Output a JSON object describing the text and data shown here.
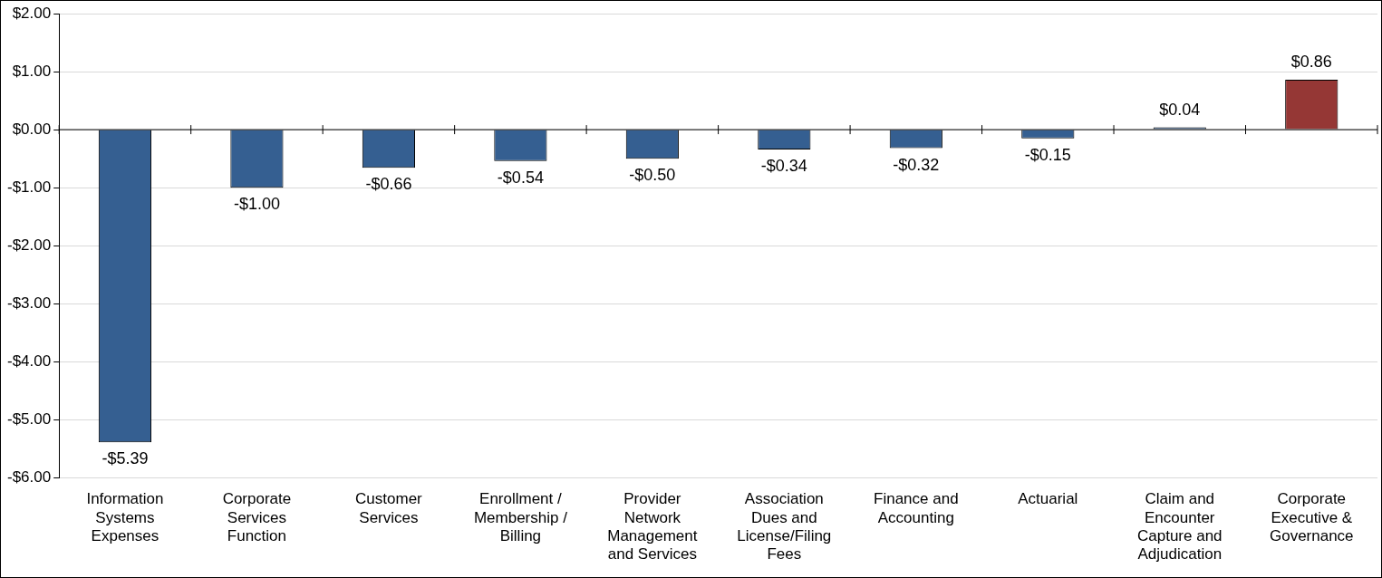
{
  "chart_data": {
    "type": "bar",
    "categories": [
      "Information Systems Expenses",
      "Corporate Services Function",
      "Customer Services",
      "Enrollment / Membership / Billing",
      "Provider Network Management and Services",
      "Association Dues and License/Filing Fees",
      "Finance and Accounting",
      "Actuarial",
      "Claim and Encounter Capture and Adjudication",
      "Corporate Executive & Governance"
    ],
    "values": [
      -5.39,
      -1.0,
      -0.66,
      -0.54,
      -0.5,
      -0.34,
      -0.32,
      -0.15,
      0.04,
      0.86
    ],
    "colors": [
      "#355f91",
      "#355f91",
      "#355f91",
      "#355f91",
      "#355f91",
      "#355f91",
      "#355f91",
      "#355f91",
      "#355f91",
      "#953735"
    ],
    "value_labels": [
      "-$5.39",
      "-$1.00",
      "-$0.66",
      "-$0.54",
      "-$0.50",
      "-$0.34",
      "-$0.32",
      "-$0.15",
      "$0.04",
      "$0.86"
    ],
    "ylim": [
      -6,
      2
    ],
    "yticks": [
      {
        "value": -6,
        "label": "-$6.00"
      },
      {
        "value": -5,
        "label": "-$5.00"
      },
      {
        "value": -4,
        "label": "-$4.00"
      },
      {
        "value": -3,
        "label": "-$3.00"
      },
      {
        "value": -2,
        "label": "-$2.00"
      },
      {
        "value": -1,
        "label": "-$1.00"
      },
      {
        "value": 0,
        "label": "$0.00"
      },
      {
        "value": 1,
        "label": "$1.00"
      },
      {
        "value": 2,
        "label": "$2.00"
      }
    ],
    "grid": "y"
  }
}
